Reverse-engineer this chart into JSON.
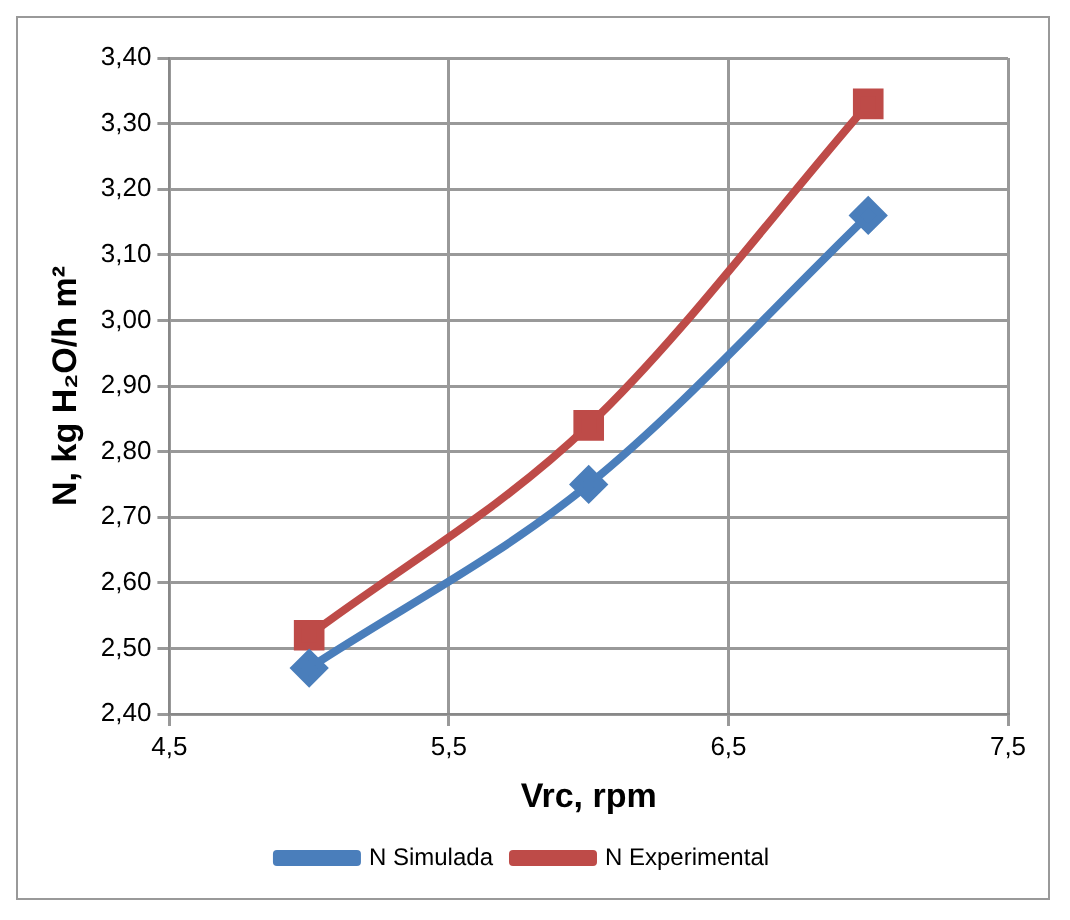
{
  "chart_data": {
    "type": "line",
    "xlabel": "Vrc, rpm",
    "ylabel": "N, kg H₂O/h m²",
    "x": [
      5,
      6,
      7
    ],
    "series": [
      {
        "name": "N Simulada",
        "color": "#4a7ebb",
        "values": [
          2.47,
          2.75,
          3.16
        ],
        "marker": "diamond"
      },
      {
        "name": "N Experimental",
        "color": "#be4b48",
        "values": [
          2.52,
          2.84,
          3.33
        ],
        "marker": "square"
      }
    ],
    "xlim": [
      4.5,
      7.5
    ],
    "xticks": [
      {
        "value": 4.5,
        "label": "4,5"
      },
      {
        "value": 5.5,
        "label": "5,5"
      },
      {
        "value": 6.5,
        "label": "6,5"
      },
      {
        "value": 7.5,
        "label": "7,5"
      }
    ],
    "ylim": [
      2.4,
      3.4
    ],
    "yticks": [
      {
        "value": 2.4,
        "label": "2,40"
      },
      {
        "value": 2.5,
        "label": "2,50"
      },
      {
        "value": 2.6,
        "label": "2,60"
      },
      {
        "value": 2.7,
        "label": "2,70"
      },
      {
        "value": 2.8,
        "label": "2,80"
      },
      {
        "value": 2.9,
        "label": "2,90"
      },
      {
        "value": 3.0,
        "label": "3,00"
      },
      {
        "value": 3.1,
        "label": "3,10"
      },
      {
        "value": 3.2,
        "label": "3,20"
      },
      {
        "value": 3.3,
        "label": "3,30"
      },
      {
        "value": 3.4,
        "label": "3,40"
      }
    ],
    "grid": true,
    "legend": "bottom",
    "line_style": "solid"
  }
}
